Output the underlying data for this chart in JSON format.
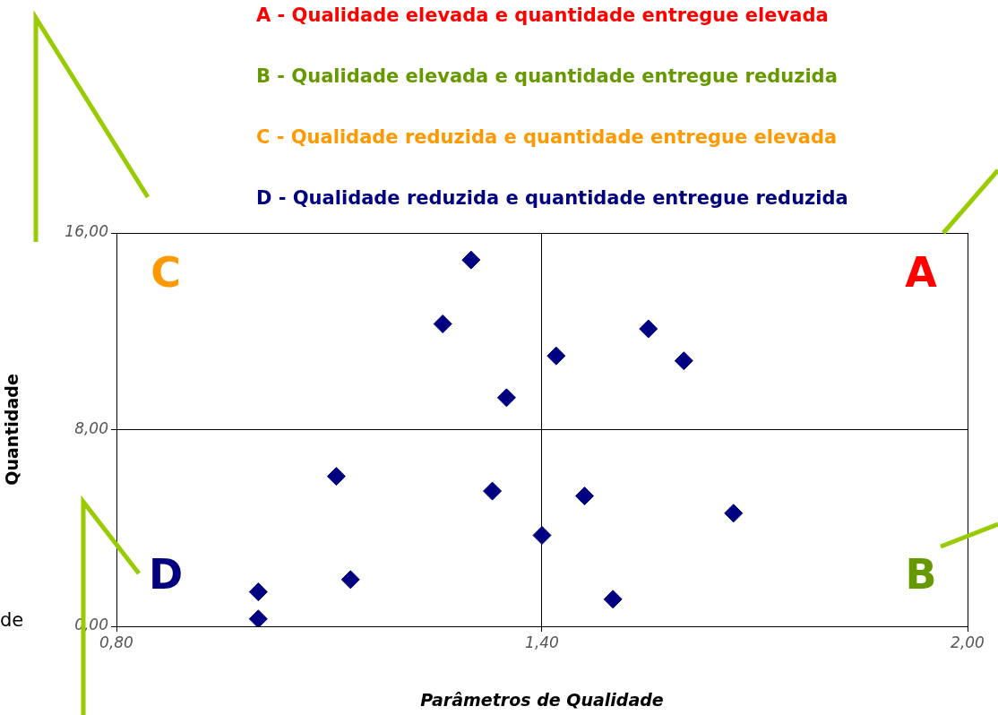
{
  "chart_data": {
    "type": "scatter",
    "xlabel": "Parâmetros de Qualidade",
    "ylabel": "Quantidade",
    "x": [
      1.3,
      1.26,
      1.42,
      1.55,
      1.6,
      1.35,
      1.11,
      1.33,
      1.46,
      1.67,
      1.4,
      1.13,
      1.0,
      1.0,
      1.5
    ],
    "series": [
      {
        "color": "#000080",
        "values": [
          14.9,
          12.3,
          11.0,
          12.1,
          10.8,
          9.3,
          6.1,
          5.5,
          5.3,
          4.6,
          3.7,
          1.9,
          1.4,
          0.3,
          1.1
        ]
      }
    ],
    "xlim": [
      0.8,
      2.0
    ],
    "xticks": [
      {
        "value": 0.8,
        "label": "0,80"
      },
      {
        "value": 1.4,
        "label": "1,40"
      },
      {
        "value": 2.0,
        "label": "2,00"
      }
    ],
    "ylim": [
      0,
      16
    ],
    "yticks": [
      {
        "value": 0,
        "label": "0,00"
      },
      {
        "value": 8,
        "label": "8,00"
      },
      {
        "value": 16,
        "label": "16,00"
      }
    ],
    "grid": true,
    "marker": "diamond",
    "legend": false,
    "annotations": [
      "A - Qualidade elevada e quantidade entregue elevada",
      "B - Qualidade elevada e quantidade entregue reduzida",
      "C - Qualidade reduzida e quantidade entregue elevada",
      "D - Qualidade reduzida e quantidade entregue reduzida",
      "A",
      "B",
      "C",
      "D",
      "de"
    ]
  }
}
